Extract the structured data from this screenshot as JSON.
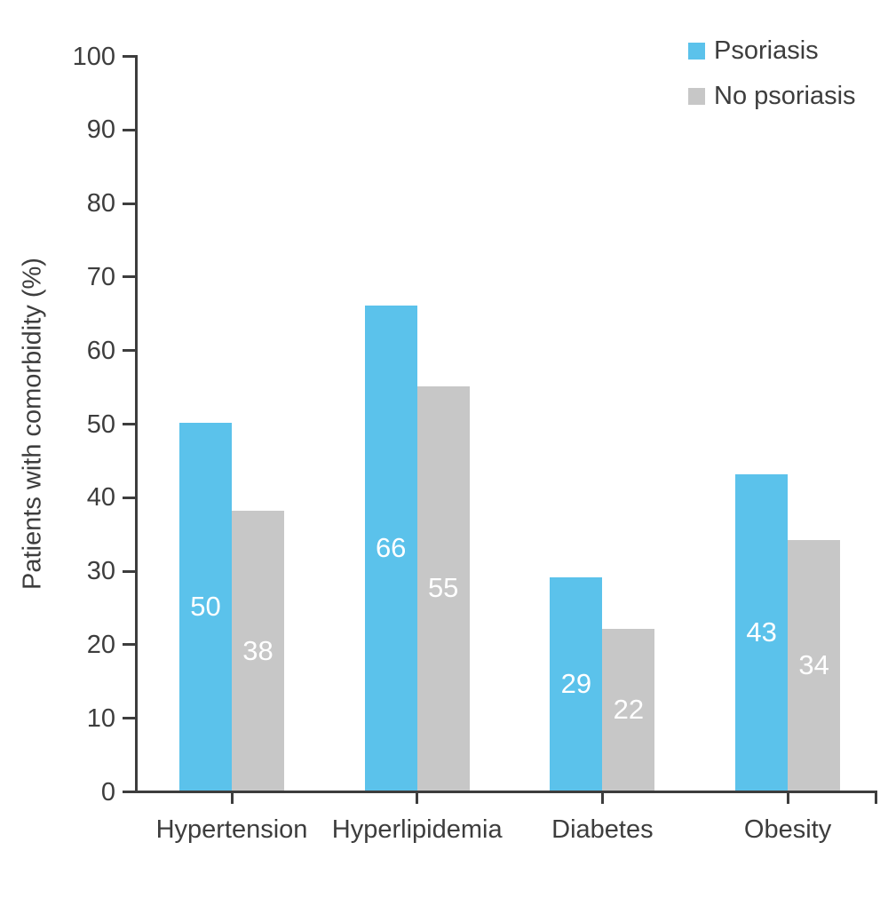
{
  "chart_data": {
    "type": "bar",
    "title": "",
    "xlabel": "",
    "ylabel": "Patients with comorbidity (%)",
    "ylim": [
      0,
      100
    ],
    "ytick_step": 10,
    "grid": false,
    "legend_position": "top-right",
    "bar_value_labels": true,
    "categories": [
      "Hypertension",
      "Hyperlipidemia",
      "Diabetes",
      "Obesity"
    ],
    "series": [
      {
        "name": "Psoriasis",
        "color": "#5BC2EB",
        "values": [
          50,
          66,
          29,
          43
        ]
      },
      {
        "name": "No psoriasis",
        "color": "#C7C7C7",
        "values": [
          38,
          55,
          22,
          34
        ]
      }
    ],
    "axis_color": "#3D3D3D",
    "text_color": "#3D3D3D",
    "value_label_color": "#FFFFFF"
  }
}
